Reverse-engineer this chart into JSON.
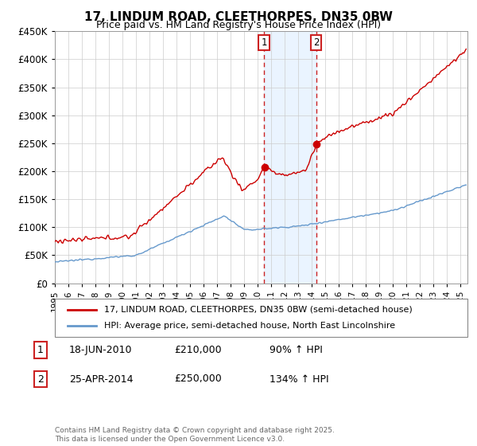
{
  "title": "17, LINDUM ROAD, CLEETHORPES, DN35 0BW",
  "subtitle": "Price paid vs. HM Land Registry's House Price Index (HPI)",
  "legend_line1": "17, LINDUM ROAD, CLEETHORPES, DN35 0BW (semi-detached house)",
  "legend_line2": "HPI: Average price, semi-detached house, North East Lincolnshire",
  "footer": "Contains HM Land Registry data © Crown copyright and database right 2025.\nThis data is licensed under the Open Government Licence v3.0.",
  "sale1_date": "18-JUN-2010",
  "sale1_price": 210000,
  "sale1_hpi": "90% ↑ HPI",
  "sale2_date": "25-APR-2014",
  "sale2_price": 250000,
  "sale2_hpi": "134% ↑ HPI",
  "sale1_x": 2010.46,
  "sale2_x": 2014.32,
  "red_color": "#cc0000",
  "blue_color": "#6699cc",
  "shade_color": "#ddeeff",
  "ylim": [
    0,
    450000
  ],
  "xlim": [
    1995.0,
    2025.5
  ],
  "ylabel_ticks": [
    0,
    50000,
    100000,
    150000,
    200000,
    250000,
    300000,
    350000,
    400000,
    450000
  ],
  "xlabel_ticks": [
    1995,
    1996,
    1997,
    1998,
    1999,
    2000,
    2001,
    2002,
    2003,
    2004,
    2005,
    2006,
    2007,
    2008,
    2009,
    2010,
    2011,
    2012,
    2013,
    2014,
    2015,
    2016,
    2017,
    2018,
    2019,
    2020,
    2021,
    2022,
    2023,
    2024,
    2025
  ]
}
